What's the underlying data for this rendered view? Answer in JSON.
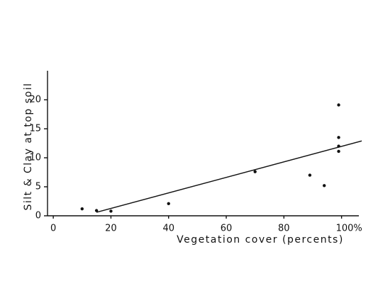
{
  "chart_data": {
    "type": "scatter",
    "xlabel": "Vegetation cover  (percents)",
    "ylabel": "Silt & Clay at top soil",
    "x": [
      10,
      15,
      20,
      40,
      70,
      89,
      94,
      99,
      99,
      99,
      99
    ],
    "values": [
      1.2,
      0.9,
      0.8,
      2.1,
      7.6,
      7.0,
      5.2,
      19.1,
      13.5,
      12.0,
      11.1
    ],
    "color": "#111111",
    "trend": {
      "x": [
        15,
        107
      ],
      "values": [
        0.6,
        12.9
      ]
    },
    "xlim": [
      -2,
      106
    ],
    "ylim": [
      0,
      25
    ],
    "xticks": [
      0,
      20,
      40,
      60,
      80,
      {
        "value": 100,
        "label": "100%"
      }
    ],
    "yticks": [
      0,
      5,
      10,
      15,
      20
    ]
  }
}
